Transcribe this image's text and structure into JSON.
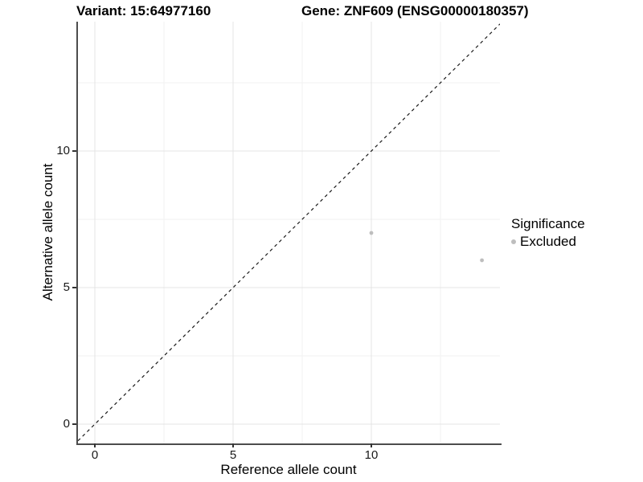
{
  "chart_data": {
    "type": "scatter",
    "title_left": "Variant: 15:64977160",
    "title_right": "Gene: ZNF609 (ENSG00000180357)",
    "xlabel": "Reference allele count",
    "ylabel": "Alternative allele count",
    "x_ticks": [
      0,
      5,
      10
    ],
    "y_ticks": [
      0,
      5,
      10
    ],
    "x_minor_ticks": [
      2.5,
      7.5,
      12.5
    ],
    "y_minor_ticks": [
      2.5,
      7.5,
      12.5
    ],
    "xlim": [
      -0.61,
      14.65
    ],
    "ylim": [
      -0.71,
      14.9
    ],
    "grid": true,
    "series": [
      {
        "name": "Excluded",
        "color": "#bebebe",
        "points": [
          {
            "x": 10,
            "y": 7
          },
          {
            "x": 14,
            "y": 6
          }
        ]
      }
    ],
    "reference_line": {
      "type": "identity y = x",
      "style": "dashed",
      "color": "#1a1a1a"
    },
    "legend": {
      "title": "Significance",
      "position": "right",
      "items": [
        {
          "label": "Excluded",
          "color": "#bebebe"
        }
      ]
    }
  },
  "colors": {
    "background": "#ffffff",
    "axis_line": "#4d4d4d",
    "major_grid": "#e4e4e4",
    "minor_grid": "#f2f2f2",
    "tick_text": "#1a1a1a",
    "point": "#bebebe"
  }
}
